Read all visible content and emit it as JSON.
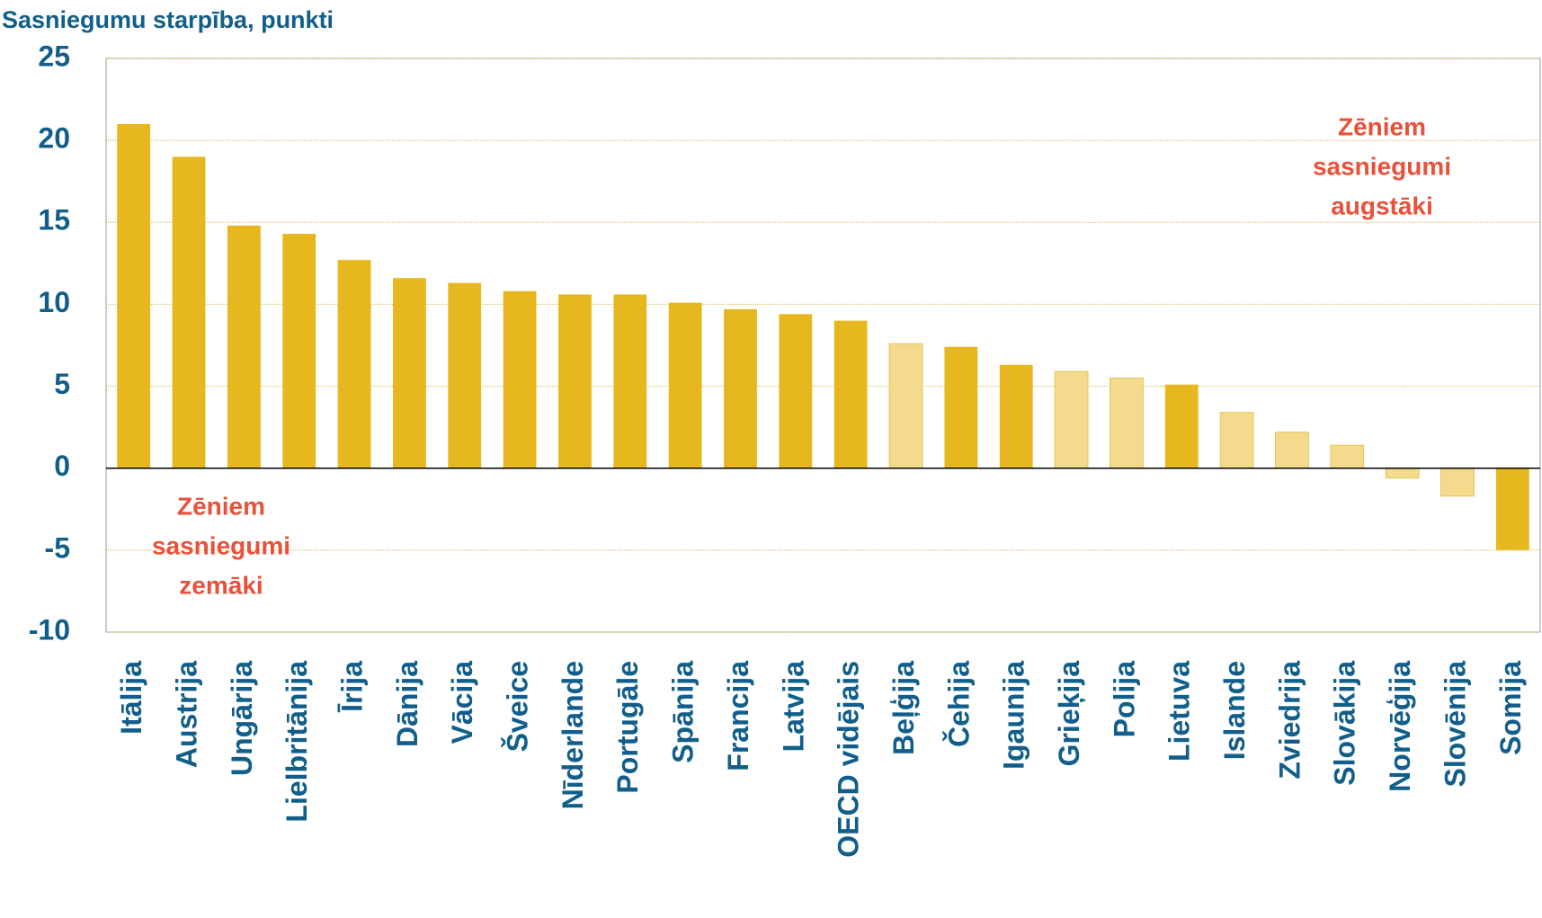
{
  "chart_data": {
    "type": "bar",
    "title": "Sasniegumu starpība, punkti",
    "categories": [
      "Itālija",
      "Austrija",
      "Ungārija",
      "Lielbritānija",
      "Īrija",
      "Dānija",
      "Vācija",
      "Šveice",
      "Nīderlande",
      "Portugāle",
      "Spānija",
      "Francija",
      "Latvija",
      "OECD vidējais",
      "Beļģija",
      "Čehija",
      "Igaunija",
      "Grieķija",
      "Polija",
      "Lietuva",
      "Islande",
      "Zviedrija",
      "Slovākija",
      "Norvēģija",
      "Slovēnija",
      "Somija"
    ],
    "values": [
      21,
      19,
      14.8,
      14.3,
      12.7,
      11.6,
      11.3,
      10.8,
      10.6,
      10.6,
      10.1,
      9.7,
      9.4,
      9.0,
      7.6,
      7.4,
      6.3,
      5.9,
      5.5,
      5.1,
      3.4,
      2.2,
      1.4,
      -0.6,
      -1.7,
      -5
    ],
    "colors": [
      "#e6b71e",
      "#e6b71e",
      "#e6b71e",
      "#e6b71e",
      "#e6b71e",
      "#e6b71e",
      "#e6b71e",
      "#e6b71e",
      "#e6b71e",
      "#e6b71e",
      "#e6b71e",
      "#e6b71e",
      "#e6b71e",
      "#e6b71e",
      "#f3da8c",
      "#e6b71e",
      "#e6b71e",
      "#f3da8c",
      "#f3da8c",
      "#e6b71e",
      "#f3da8c",
      "#f3da8c",
      "#f3da8c",
      "#f3da8c",
      "#f3da8c",
      "#e6b71e"
    ],
    "ylim": [
      -10,
      25
    ],
    "yticks": [
      -10,
      -5,
      0,
      5,
      10,
      15,
      20,
      25
    ],
    "grid": true,
    "annotations": [
      {
        "lines": [
          "Zēniem",
          "sasniegumi",
          "augstāki"
        ]
      },
      {
        "lines": [
          "Zēniem",
          "sasniegumi",
          "zemāki"
        ]
      }
    ]
  }
}
